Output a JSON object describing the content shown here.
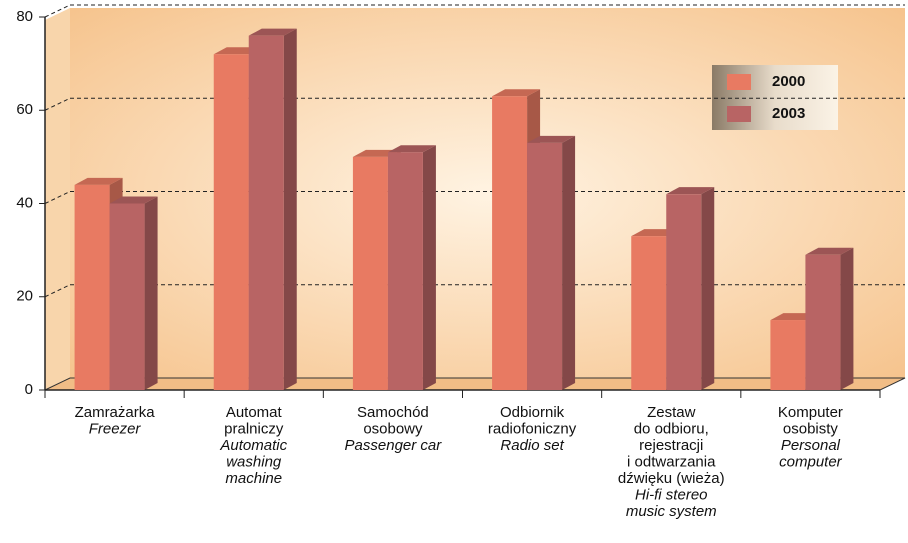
{
  "chart_data": {
    "type": "bar3d",
    "categories": [
      {
        "polish": [
          "Zamrażarka"
        ],
        "english": [
          "Freezer"
        ]
      },
      {
        "polish": [
          "Automat",
          "pralniczy"
        ],
        "english": [
          "Automatic",
          "washing",
          "machine"
        ]
      },
      {
        "polish": [
          "Samochód",
          "osobowy"
        ],
        "english": [
          "Passenger car"
        ]
      },
      {
        "polish": [
          "Odbiornik",
          "radiofoniczny"
        ],
        "english": [
          "Radio set"
        ]
      },
      {
        "polish": [
          "Zestaw",
          "do odbioru,",
          "rejestracji",
          "i odtwarzania",
          "dźwięku (wieża)"
        ],
        "english": [
          "Hi-fi stereo",
          "music system"
        ]
      },
      {
        "polish": [
          "Komputer",
          "osobisty"
        ],
        "english": [
          "Personal",
          "computer"
        ]
      }
    ],
    "series": [
      {
        "name": "2000",
        "color": "#e87a62",
        "values": [
          44,
          72,
          50,
          63,
          33,
          15
        ]
      },
      {
        "name": "2003",
        "color": "#b86464",
        "values": [
          40,
          76,
          51,
          53,
          42,
          29
        ]
      }
    ],
    "ylim": [
      0,
      80
    ],
    "yticks": [
      0,
      20,
      40,
      60,
      80
    ],
    "grid": true
  }
}
